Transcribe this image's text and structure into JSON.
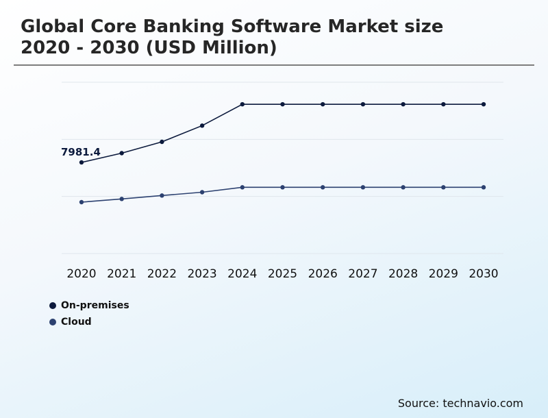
{
  "title_line1": "Global Core Banking Software Market size",
  "title_line2": "2020 - 2030 (USD Million)",
  "source": "Source: technavio.com",
  "colors": {
    "on_premises": "#0c1a3d",
    "cloud": "#2c4170",
    "grid": "#dfe6ec"
  },
  "chart_data": {
    "type": "line",
    "title": "Global Core Banking Software Market size 2020 - 2030 (USD Million)",
    "x": [
      "2020",
      "2021",
      "2022",
      "2023",
      "2024",
      "2025",
      "2026",
      "2027",
      "2028",
      "2029",
      "2030"
    ],
    "ylim": [
      0,
      15000
    ],
    "grid": true,
    "legend_position": "bottom-left",
    "series": [
      {
        "name": "On-premises",
        "values": [
          7981.4,
          8790,
          9780,
          11200,
          13070,
          13070,
          13070,
          13070,
          13070,
          13070,
          13070
        ]
      },
      {
        "name": "Cloud",
        "values": [
          4500,
          4780,
          5080,
          5370,
          5800,
          5800,
          5800,
          5800,
          5800,
          5800,
          5800
        ]
      }
    ],
    "annotations": [
      {
        "series": "On-premises",
        "x": "2020",
        "text": "7981.4"
      }
    ]
  }
}
